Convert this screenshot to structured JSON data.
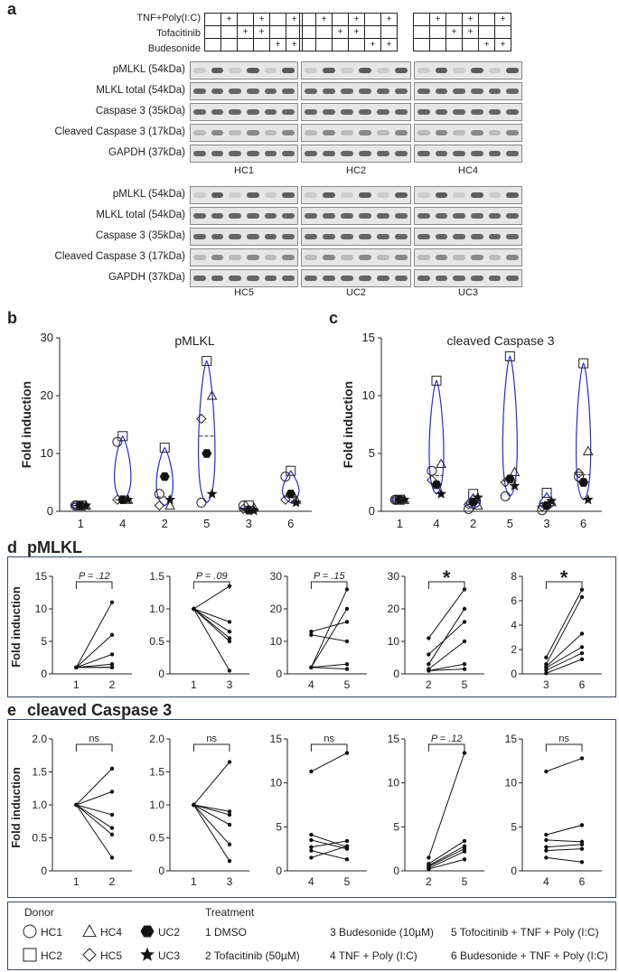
{
  "panel_labels": {
    "a": "a",
    "b": "b",
    "c": "c",
    "d": "d",
    "e": "e"
  },
  "treatment_rows": [
    "TNF+Poly(I:C)",
    "Tofacitinib",
    "Budesonide"
  ],
  "treatment_marks": [
    [
      "",
      "+",
      "",
      "+",
      "",
      "+"
    ],
    [
      "",
      "",
      "+",
      "+",
      "",
      ""
    ],
    [
      "",
      "",
      "",
      "",
      "+",
      "+"
    ]
  ],
  "blot_rows": [
    "pMLKL (54kDa)",
    "MLKL total (54kDa)",
    "Caspase 3  (35kDa)",
    "Cleaved Caspase 3 (17kDa)",
    "GAPDH (37kDa)"
  ],
  "blot_rows_bottom": [
    "pMLKL (54kDa)",
    "MLKL total (54kDa)",
    "Caspase 3 (35kDa)",
    "Cleaved Caspase 3 (17kDa)",
    "GAPDH (37kDa)"
  ],
  "donors_top": [
    "HC1",
    "HC2",
    "HC4"
  ],
  "donors_bottom": [
    "HC5",
    "UC2",
    "UC3"
  ],
  "y_axis_label": "Fold induction",
  "panel_d_title": "pMLKL",
  "panel_e_title": "cleaved Caspase 3",
  "chart_data": [
    {
      "id": "b",
      "type": "violin",
      "title": "pMLKL",
      "ylabel": "Fold induction",
      "categories": [
        "1",
        "4",
        "2",
        "5",
        "3",
        "6"
      ],
      "ylim": [
        0,
        30
      ],
      "yticks": [
        0,
        10,
        20,
        30
      ],
      "points": [
        [
          1,
          1,
          1,
          1,
          1,
          1
        ],
        [
          12,
          13,
          2,
          2,
          2,
          2
        ],
        [
          3,
          11,
          1,
          1,
          6,
          2
        ],
        [
          1.5,
          26,
          20,
          16,
          10,
          3
        ],
        [
          1,
          1,
          0.6,
          0.4,
          0.2,
          0.1
        ],
        [
          6,
          7,
          2,
          2,
          3,
          1.5
        ]
      ]
    },
    {
      "id": "c",
      "type": "violin",
      "title": "cleaved Caspase 3",
      "ylabel": "Fold induction",
      "categories": [
        "1",
        "4",
        "2",
        "5",
        "3",
        "6"
      ],
      "ylim": [
        0,
        15
      ],
      "yticks": [
        0,
        5,
        10,
        15
      ],
      "points": [
        [
          1,
          1,
          1,
          1,
          1,
          1
        ],
        [
          3.5,
          11.3,
          4.1,
          2.7,
          2.3,
          1.5
        ],
        [
          0.2,
          1.5,
          0.5,
          0.6,
          0.8,
          1.2
        ],
        [
          1.3,
          13.4,
          3.4,
          2.5,
          2.8,
          2.2
        ],
        [
          0.1,
          1.6,
          0.8,
          0.4,
          0.5,
          0.9
        ],
        [
          3,
          12.8,
          5.2,
          3.3,
          2.5,
          1
        ]
      ]
    },
    {
      "id": "d1",
      "type": "paired-line",
      "xcats": [
        "1",
        "2"
      ],
      "ylim": [
        0,
        15
      ],
      "yticks": [
        0,
        5,
        10,
        15
      ],
      "annotation": "P = .12",
      "pairs": [
        [
          1,
          1
        ],
        [
          1,
          11
        ],
        [
          1,
          6
        ],
        [
          1,
          3
        ],
        [
          1,
          1.5
        ],
        [
          1,
          1
        ]
      ]
    },
    {
      "id": "d2",
      "type": "paired-line",
      "xcats": [
        "1",
        "3"
      ],
      "ylim": [
        0,
        1.5
      ],
      "yticks": [
        "0",
        "0.5",
        "1.0",
        "1.5"
      ],
      "annotation": "P = .09",
      "pairs": [
        [
          1,
          1.35
        ],
        [
          1,
          0.8
        ],
        [
          1,
          0.65
        ],
        [
          1,
          0.55
        ],
        [
          1,
          0.5
        ],
        [
          1,
          0.05
        ]
      ]
    },
    {
      "id": "d3",
      "type": "paired-line",
      "xcats": [
        "4",
        "5"
      ],
      "ylim": [
        0,
        30
      ],
      "yticks": [
        0,
        10,
        20,
        30
      ],
      "annotation": "P = .15",
      "pairs": [
        [
          12,
          10
        ],
        [
          13,
          16
        ],
        [
          2,
          26
        ],
        [
          2,
          20
        ],
        [
          2,
          3
        ],
        [
          2,
          1.5
        ]
      ]
    },
    {
      "id": "d4",
      "type": "paired-line",
      "xcats": [
        "2",
        "5"
      ],
      "ylim": [
        0,
        30
      ],
      "yticks": [
        0,
        10,
        20,
        30
      ],
      "annotation": "*",
      "pairs": [
        [
          11,
          26
        ],
        [
          6,
          16
        ],
        [
          3,
          20
        ],
        [
          1.5,
          10
        ],
        [
          1,
          3
        ],
        [
          1,
          1.5
        ]
      ]
    },
    {
      "id": "d5",
      "type": "paired-line",
      "xcats": [
        "3",
        "6"
      ],
      "ylim": [
        0,
        8
      ],
      "yticks": [
        0,
        2,
        4,
        6,
        8
      ],
      "annotation": "*",
      "pairs": [
        [
          1.35,
          6.9
        ],
        [
          0.8,
          6.3
        ],
        [
          0.6,
          3.3
        ],
        [
          0.5,
          2.2
        ],
        [
          0.3,
          1.7
        ],
        [
          0.05,
          1.2
        ]
      ]
    },
    {
      "id": "e1",
      "type": "paired-line",
      "xcats": [
        "1",
        "2"
      ],
      "ylim": [
        0,
        2
      ],
      "yticks": [
        "0",
        "0.5",
        "1.0",
        "1.5",
        "2.0"
      ],
      "annotation": "ns",
      "pairs": [
        [
          1,
          1.55
        ],
        [
          1,
          1.2
        ],
        [
          1,
          0.85
        ],
        [
          1,
          0.65
        ],
        [
          1,
          0.55
        ],
        [
          1,
          0.2
        ]
      ]
    },
    {
      "id": "e2",
      "type": "paired-line",
      "xcats": [
        "1",
        "3"
      ],
      "ylim": [
        0,
        2
      ],
      "yticks": [
        "0",
        "0.5",
        "1.0",
        "1.5",
        "2.0"
      ],
      "annotation": "ns",
      "pairs": [
        [
          1,
          1.65
        ],
        [
          1,
          0.9
        ],
        [
          1,
          0.85
        ],
        [
          1,
          0.7
        ],
        [
          1,
          0.4
        ],
        [
          1,
          0.15
        ]
      ]
    },
    {
      "id": "e3",
      "type": "paired-line",
      "xcats": [
        "4",
        "5"
      ],
      "ylim": [
        0,
        15
      ],
      "yticks": [
        0,
        5,
        10,
        15
      ],
      "annotation": "ns",
      "pairs": [
        [
          11.3,
          13.4
        ],
        [
          4.1,
          2.7
        ],
        [
          3.5,
          2.5
        ],
        [
          2.7,
          3.4
        ],
        [
          2.3,
          1.3
        ],
        [
          1.5,
          2.8
        ]
      ]
    },
    {
      "id": "e4",
      "type": "paired-line",
      "xcats": [
        "2",
        "5"
      ],
      "ylim": [
        0,
        15
      ],
      "yticks": [
        0,
        5,
        10,
        15
      ],
      "annotation": "P = .12",
      "pairs": [
        [
          1.5,
          13.4
        ],
        [
          0.8,
          3.4
        ],
        [
          0.6,
          2.8
        ],
        [
          0.5,
          2.5
        ],
        [
          0.3,
          2.2
        ],
        [
          0.2,
          1.3
        ]
      ]
    },
    {
      "id": "e5",
      "type": "paired-line",
      "xcats": [
        "4",
        "6"
      ],
      "ylim": [
        0,
        15
      ],
      "yticks": [
        0,
        5,
        10,
        15
      ],
      "annotation": "ns",
      "pairs": [
        [
          11.3,
          12.8
        ],
        [
          4.1,
          5.2
        ],
        [
          3.5,
          3.3
        ],
        [
          2.7,
          3
        ],
        [
          2.3,
          2.5
        ],
        [
          1.5,
          1
        ]
      ]
    }
  ],
  "legend": {
    "donor_title": "Donor",
    "donors": [
      "HC1",
      "HC4",
      "UC2",
      "HC2",
      "HC5",
      "UC3"
    ],
    "treatment_title": "Treatment",
    "treatments": [
      "1 DMSO",
      "2 Tofacitinib (50µM)",
      "3 Budesonide (10µM)",
      "4 TNF + Poly (I:C)",
      "5 Tofocitinib + TNF + Poly (I:C)",
      "6 Budesonide + TNF + Poly (I:C)"
    ]
  }
}
